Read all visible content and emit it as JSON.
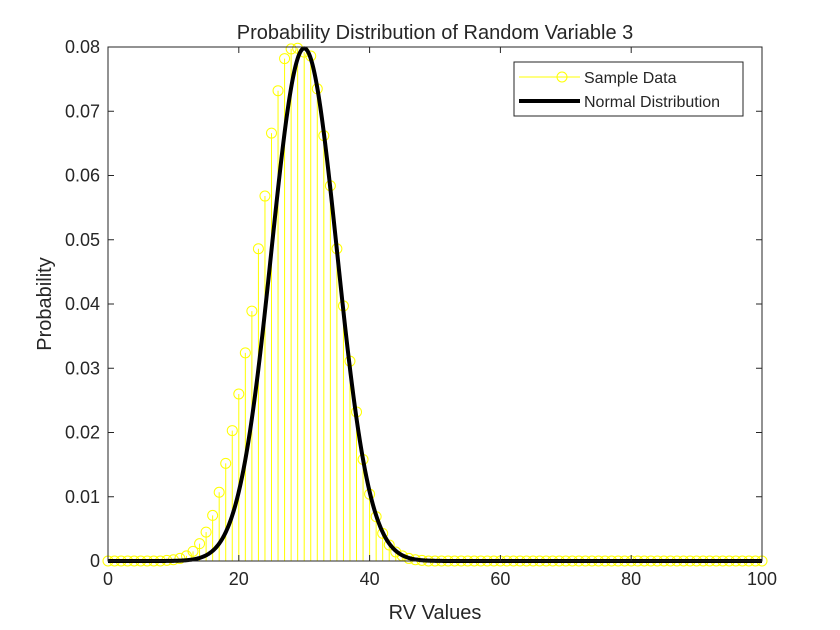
{
  "chart_data": {
    "type": "line",
    "title": "Probability Distribution of Random Variable 3",
    "xlabel": "RV Values",
    "ylabel": "Probability",
    "xlim": [
      0,
      100
    ],
    "ylim": [
      0,
      0.08
    ],
    "xticks": [
      "0",
      "20",
      "40",
      "60",
      "80",
      "100"
    ],
    "yticks": [
      "0",
      "0.01",
      "0.02",
      "0.03",
      "0.04",
      "0.05",
      "0.06",
      "0.07",
      "0.08"
    ],
    "grid": false,
    "legend": {
      "placement": "top-right"
    },
    "colors": {
      "sample": "#ffff00",
      "normal": "#000000",
      "axes": "#262626"
    },
    "series": [
      {
        "name": "Sample Data",
        "style": "stem",
        "x": [
          0,
          1,
          2,
          3,
          4,
          5,
          6,
          7,
          8,
          9,
          10,
          11,
          12,
          13,
          14,
          15,
          16,
          17,
          18,
          19,
          20,
          21,
          22,
          23,
          24,
          25,
          26,
          27,
          28,
          29,
          30,
          31,
          32,
          33,
          34,
          35,
          36,
          37,
          38,
          39,
          40,
          41,
          42,
          43,
          44,
          45,
          46,
          47,
          48,
          49,
          50,
          51,
          52,
          53,
          54,
          55,
          56,
          57,
          58,
          59,
          60,
          61,
          62,
          63,
          64,
          65,
          66,
          67,
          68,
          69,
          70,
          71,
          72,
          73,
          74,
          75,
          76,
          77,
          78,
          79,
          80,
          81,
          82,
          83,
          84,
          85,
          86,
          87,
          88,
          89,
          90,
          91,
          92,
          93,
          94,
          95,
          96,
          97,
          98,
          99,
          100
        ],
        "y": [
          0,
          0,
          0,
          0,
          0,
          0,
          0,
          0,
          0,
          0.0001,
          0.0002,
          0.0004,
          0.0008,
          0.0015,
          0.0027,
          0.0045,
          0.0071,
          0.0107,
          0.0152,
          0.0203,
          0.026,
          0.0324,
          0.0389,
          0.0486,
          0.0568,
          0.0666,
          0.0732,
          0.0782,
          0.0797,
          0.0798,
          0.0792,
          0.0786,
          0.0735,
          0.0662,
          0.0584,
          0.0486,
          0.0397,
          0.0311,
          0.0232,
          0.0158,
          0.0104,
          0.0069,
          0.0043,
          0.0025,
          0.0014,
          0.0008,
          0.0004,
          0.0002,
          0.0001,
          0,
          0,
          0,
          0,
          0,
          0,
          0,
          0,
          0,
          0,
          0,
          0,
          0,
          0,
          0,
          0,
          0,
          0,
          0,
          0,
          0,
          0,
          0,
          0,
          0,
          0,
          0,
          0,
          0,
          0,
          0,
          0,
          0,
          0,
          0,
          0,
          0,
          0,
          0,
          0,
          0,
          0,
          0,
          0,
          0,
          0,
          0,
          0,
          0,
          0,
          0,
          0
        ]
      },
      {
        "name": "Normal Distribution",
        "style": "line",
        "mean": 30,
        "std": 5,
        "x_range": [
          0,
          100
        ]
      }
    ]
  }
}
